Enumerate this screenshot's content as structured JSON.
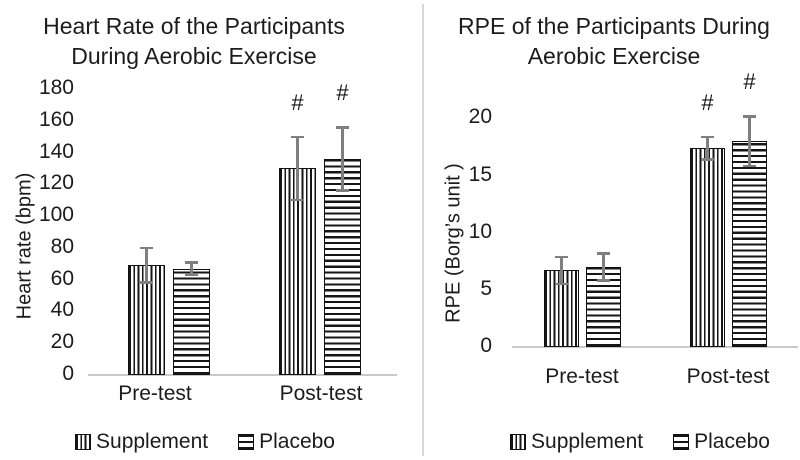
{
  "chart_data": [
    {
      "type": "bar",
      "title": "Heart Rate of the Participants During Aerobic Exercise",
      "title_lines": [
        "Heart Rate of the Participants",
        "During Aerobic Exercise"
      ],
      "categories": [
        "Pre-test",
        "Post-test"
      ],
      "series": [
        {
          "name": "Supplement",
          "values": [
            69,
            130
          ],
          "errors": [
            11,
            20
          ],
          "fill_pattern": "vertical-stripes"
        },
        {
          "name": "Placebo",
          "values": [
            67,
            136
          ],
          "errors": [
            4,
            20
          ],
          "fill_pattern": "horizontal-stripes"
        }
      ],
      "xlabel": "",
      "ylabel": "Heart rate (bpm)",
      "ylim": [
        0,
        180
      ],
      "ytick_step": 20,
      "yticks": [
        0,
        20,
        40,
        60,
        80,
        100,
        120,
        140,
        160,
        180
      ],
      "grid": false,
      "legend_position": "bottom",
      "annotations": [
        {
          "text": "#",
          "category": "Post-test",
          "series": "Supplement"
        },
        {
          "text": "#",
          "category": "Post-test",
          "series": "Placebo"
        }
      ]
    },
    {
      "type": "bar",
      "title": "RPE of the Participants During Aerobic Exercise",
      "title_lines": [
        "RPE of the Participants During",
        "Aerobic Exercise"
      ],
      "categories": [
        "Pre-test",
        "Post-test"
      ],
      "series": [
        {
          "name": "Supplement",
          "values": [
            6.7,
            17.4
          ],
          "errors": [
            1.2,
            1.0
          ],
          "fill_pattern": "vertical-stripes"
        },
        {
          "name": "Placebo",
          "values": [
            7.0,
            18.0
          ],
          "errors": [
            1.2,
            2.2
          ],
          "fill_pattern": "horizontal-stripes"
        }
      ],
      "xlabel": "",
      "ylabel": "RPE (Borg’s unit )",
      "ylim": [
        0,
        20
      ],
      "ytick_step": 5,
      "yticks": [
        0,
        5,
        10,
        15,
        20
      ],
      "grid": false,
      "legend_position": "bottom",
      "annotations": [
        {
          "text": "#",
          "category": "Post-test",
          "series": "Supplement"
        },
        {
          "text": "#",
          "category": "Post-test",
          "series": "Placebo"
        }
      ]
    }
  ],
  "colors": {
    "text": "#1c1c1c",
    "axis_line": "#c9c9c9",
    "error_bar": "#7f7f7f",
    "bar_fill": "#ffffff",
    "bar_stroke": "#111111",
    "divider": "#d8d8d8"
  }
}
